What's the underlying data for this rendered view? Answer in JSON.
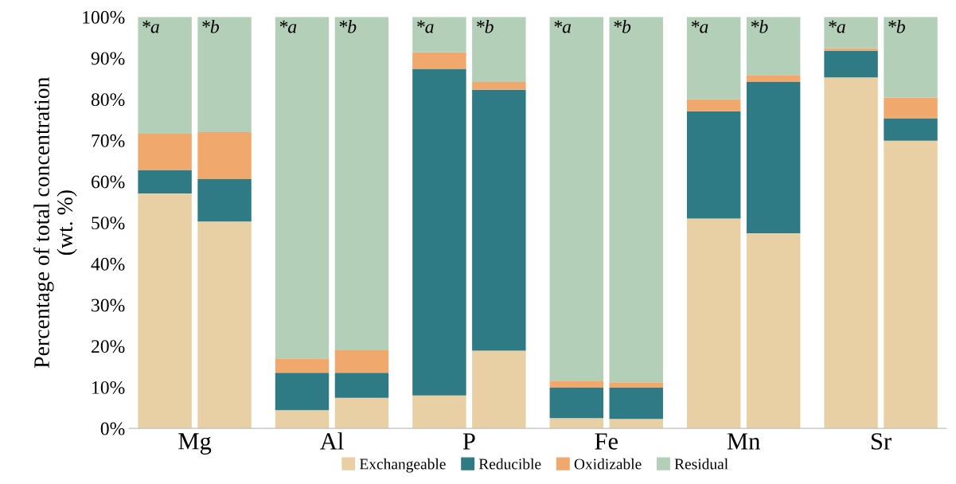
{
  "chart_data": {
    "type": "bar",
    "stacked": true,
    "ylabel": "Percentage of total concentration\n(wt. %)",
    "categories": [
      null,
      null,
      null,
      null,
      null,
      null,
      null,
      null,
      null,
      null,
      null,
      null
    ],
    "series": [
      {
        "name": "Exchangeable",
        "color": "#e8d0a4",
        "values": [
          57.1,
          50.3,
          4.4,
          7.4,
          8.0,
          18.9,
          2.5,
          2.3,
          51.0,
          47.4,
          85.3,
          69.9
        ]
      },
      {
        "name": "Reducible",
        "color": "#2e7b86",
        "values": [
          5.7,
          10.3,
          9.1,
          6.1,
          79.4,
          63.4,
          7.4,
          7.6,
          26.1,
          36.8,
          6.5,
          5.5
        ]
      },
      {
        "name": "Oxidizable",
        "color": "#f0a86c",
        "values": [
          8.8,
          11.4,
          3.5,
          5.5,
          4.0,
          1.9,
          1.7,
          1.3,
          2.9,
          1.7,
          0.6,
          5.0
        ]
      },
      {
        "name": "Residual",
        "color": "#b4cfb8",
        "values": [
          28.4,
          28.0,
          83.0,
          81.0,
          8.6,
          15.8,
          88.4,
          88.8,
          20.0,
          14.1,
          7.6,
          19.6
        ]
      }
    ],
    "ylim": [
      0,
      100
    ],
    "yticks": [
      {
        "value": 0,
        "label": "0%"
      },
      {
        "value": 10,
        "label": "10%"
      },
      {
        "value": 20,
        "label": "20%"
      },
      {
        "value": 30,
        "label": "30%"
      },
      {
        "value": 40,
        "label": "40%"
      },
      {
        "value": 50,
        "label": "50%"
      },
      {
        "value": 60,
        "label": "60%"
      },
      {
        "value": 70,
        "label": "70%"
      },
      {
        "value": 80,
        "label": "80%"
      },
      {
        "value": 90,
        "label": "90%"
      },
      {
        "value": 100,
        "label": "100%"
      }
    ],
    "annotations": [
      "Mg",
      "Al",
      "P",
      "Fe",
      "Mn",
      "Sr",
      "*a",
      "*b",
      "*a",
      "*b",
      "*a",
      "*b",
      "*a",
      "*b",
      "*a",
      "*b",
      "*a",
      "*b"
    ],
    "grid": false,
    "legend": "bottom"
  }
}
